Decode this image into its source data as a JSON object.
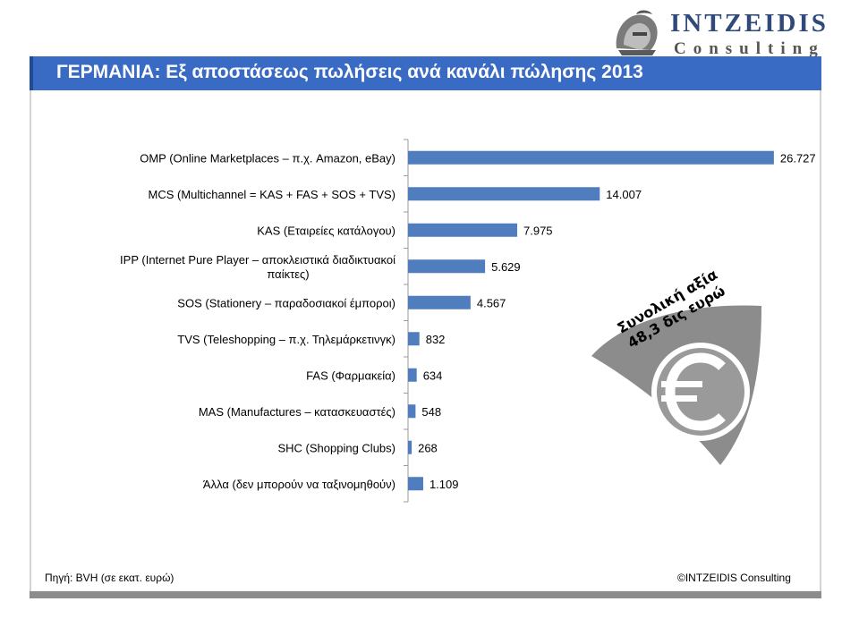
{
  "logo": {
    "name": "INTZEIDIS",
    "sub": "Consulting"
  },
  "title": "ΓΕΡΜΑΝΙΑ: Εξ αποστάσεως πωλήσεις ανά κανάλι πώλησης 2013",
  "badge": {
    "line1": "Συνολική αξία",
    "line2": "48,3 δις ευρώ",
    "icon": "euro-icon"
  },
  "footer": {
    "source": "Πηγή: BVH (σε εκατ. ευρώ)",
    "copyright": "©INTZEIDIS Consulting"
  },
  "colors": {
    "bar": "#4f7dbd",
    "title_bar": "#3a6bc4",
    "badge_gray": "#8c8c8c"
  },
  "chart_data": {
    "type": "bar",
    "orientation": "horizontal",
    "categories": [
      [
        "OMP (Online Marketplaces – π.χ. Amazon, eBay)"
      ],
      [
        "MCS (Multichannel = KAS + FAS + SOS + TVS)"
      ],
      [
        "KAS (Εταιρείες κατάλογου)"
      ],
      [
        "IPP (Internet Pure Player – αποκλειστικά διαδικτυακοί",
        "παίκτες)"
      ],
      [
        "SOS (Stationery – παραδοσιακοί έμποροι)"
      ],
      [
        "TVS (Teleshopping – π.χ. Τηλεμάρκετινγκ)"
      ],
      [
        "FAS (Φαρμακεία)"
      ],
      [
        "MAS (Manufactures – κατασκευαστές)"
      ],
      [
        "SHC (Shopping Clubs)"
      ],
      [
        "Άλλα (δεν μπορούν να ταξινομηθούν)"
      ]
    ],
    "values": [
      26727,
      14007,
      7975,
      5629,
      4567,
      832,
      634,
      548,
      268,
      1109
    ],
    "value_labels": [
      "26.727",
      "14.007",
      "7.975",
      "5.629",
      "4.567",
      "832",
      "634",
      "548",
      "268",
      "1.109"
    ],
    "xlim": [
      0,
      28500
    ],
    "grid": false,
    "legend": "none"
  }
}
